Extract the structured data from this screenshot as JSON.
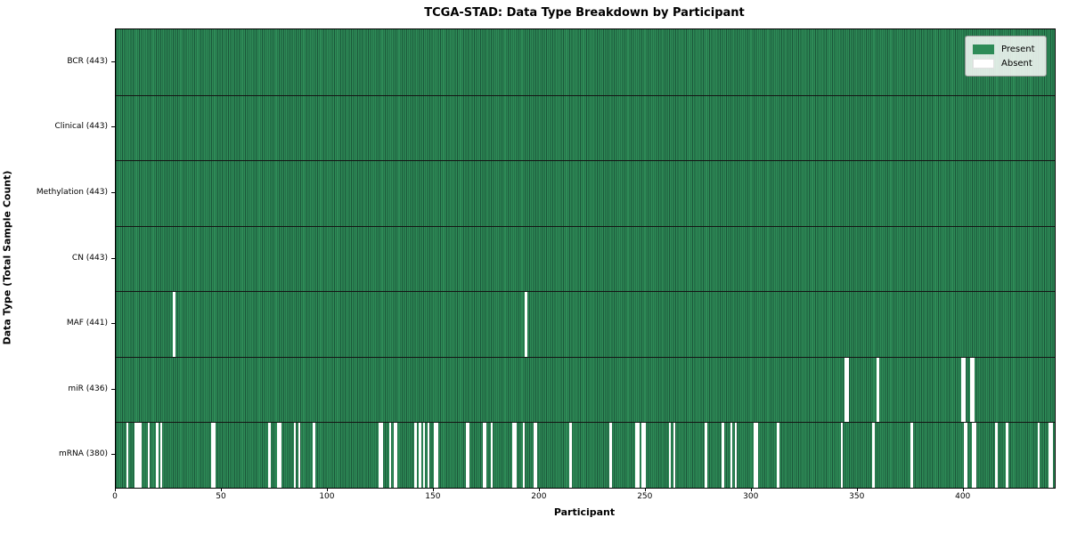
{
  "title": "TCGA-STAD: Data Type Breakdown by Participant",
  "xlabel": "Participant",
  "ylabel": "Data Type (Total Sample Count)",
  "legend": {
    "present_label": "Present",
    "absent_label": "Absent"
  },
  "colors": {
    "present": "#2e8b57",
    "absent": "#ffffff",
    "bar_edge": "#1b573a",
    "row_separator": "#141414",
    "plot_border": "#000000"
  },
  "chart_data": {
    "type": "heatmap",
    "title": "TCGA-STAD: Data Type Breakdown by Participant",
    "xlabel": "Participant",
    "ylabel": "Data Type (Total Sample Count)",
    "n_participants": 443,
    "x_ticks": [
      0,
      50,
      100,
      150,
      200,
      250,
      300,
      350,
      400
    ],
    "legend_entries": [
      "Present",
      "Absent"
    ],
    "legend_position": "upper right",
    "grid": false,
    "rows": [
      {
        "label": "BCR (443)",
        "data_type": "BCR",
        "present_count": 443,
        "absent_participants": []
      },
      {
        "label": "Clinical (443)",
        "data_type": "Clinical",
        "present_count": 443,
        "absent_participants": []
      },
      {
        "label": "Methylation (443)",
        "data_type": "Methylation",
        "present_count": 443,
        "absent_participants": []
      },
      {
        "label": "CN (443)",
        "data_type": "CN",
        "present_count": 443,
        "absent_participants": []
      },
      {
        "label": "MAF (441)",
        "data_type": "MAF",
        "present_count": 441,
        "absent_participants": [
          27,
          193
        ]
      },
      {
        "label": "miR (436)",
        "data_type": "miR",
        "present_count": 436,
        "absent_participants": [
          344,
          345,
          359,
          399,
          400,
          403,
          404
        ]
      },
      {
        "label": "mRNA (380)",
        "data_type": "mRNA",
        "present_count": 380,
        "absent_participants": [
          5,
          9,
          10,
          11,
          15,
          19,
          21,
          45,
          46,
          72,
          76,
          77,
          84,
          86,
          93,
          124,
          125,
          129,
          131,
          132,
          141,
          143,
          145,
          147,
          150,
          151,
          165,
          166,
          173,
          174,
          177,
          187,
          188,
          192,
          197,
          198,
          214,
          233,
          245,
          246,
          248,
          249,
          261,
          263,
          278,
          286,
          290,
          292,
          301,
          302,
          312,
          342,
          357,
          375,
          400,
          401,
          404,
          405,
          415,
          420,
          435,
          440,
          441
        ]
      }
    ]
  }
}
